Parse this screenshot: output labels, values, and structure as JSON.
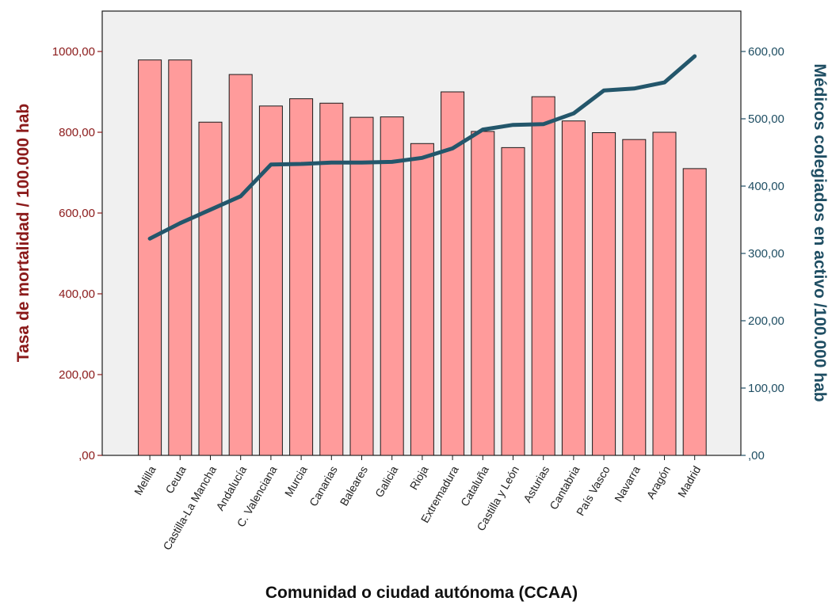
{
  "chart_data": {
    "type": "bar+line",
    "xlabel": "Comunidad o ciudad autónoma (CCAA)",
    "ylabel_left": "Tasa de mortalidad / 100.000 hab",
    "ylabel_right": "Médicos colegiados en activo /100.000 hab",
    "categories": [
      "Melilla",
      "Ceuta",
      "Castilla-La Mancha",
      "Andalucía",
      "C. Valenciana",
      "Murcia",
      "Canarias",
      "Baleares",
      "Galicia",
      "Rioja",
      "Extremadura",
      "Cataluña",
      "Castilla y León",
      "Asturias",
      "Cantabria",
      "País Vasco",
      "Navarra",
      "Aragón",
      "Madrid"
    ],
    "bars": {
      "axis": "left",
      "values": [
        979,
        979,
        825,
        943,
        865,
        883,
        872,
        837,
        838,
        772,
        900,
        802,
        762,
        888,
        828,
        799,
        782,
        800,
        710
      ]
    },
    "line": {
      "axis": "right",
      "values": [
        322,
        345,
        365,
        385,
        432,
        433,
        435,
        435,
        436,
        442,
        456,
        484,
        491,
        492,
        508,
        542,
        545,
        554,
        593
      ]
    },
    "ylim_left": [
      0,
      1100
    ],
    "ylim_right": [
      0,
      660
    ],
    "yticks_left": [
      ",00",
      "200,00",
      "400,00",
      "600,00",
      "800,00",
      "1000,00"
    ],
    "yticks_right": [
      ",00",
      "100,00",
      "200,00",
      "300,00",
      "400,00",
      "500,00",
      "600,00"
    ],
    "colors": {
      "bar_fill": "#ff9b9b",
      "bar_stroke": "#1a1a1a",
      "line": "#23566b",
      "plot_bg": "#f0f0f0",
      "left_axis": "#8b1a1a",
      "right_axis": "#1f4e63"
    }
  }
}
